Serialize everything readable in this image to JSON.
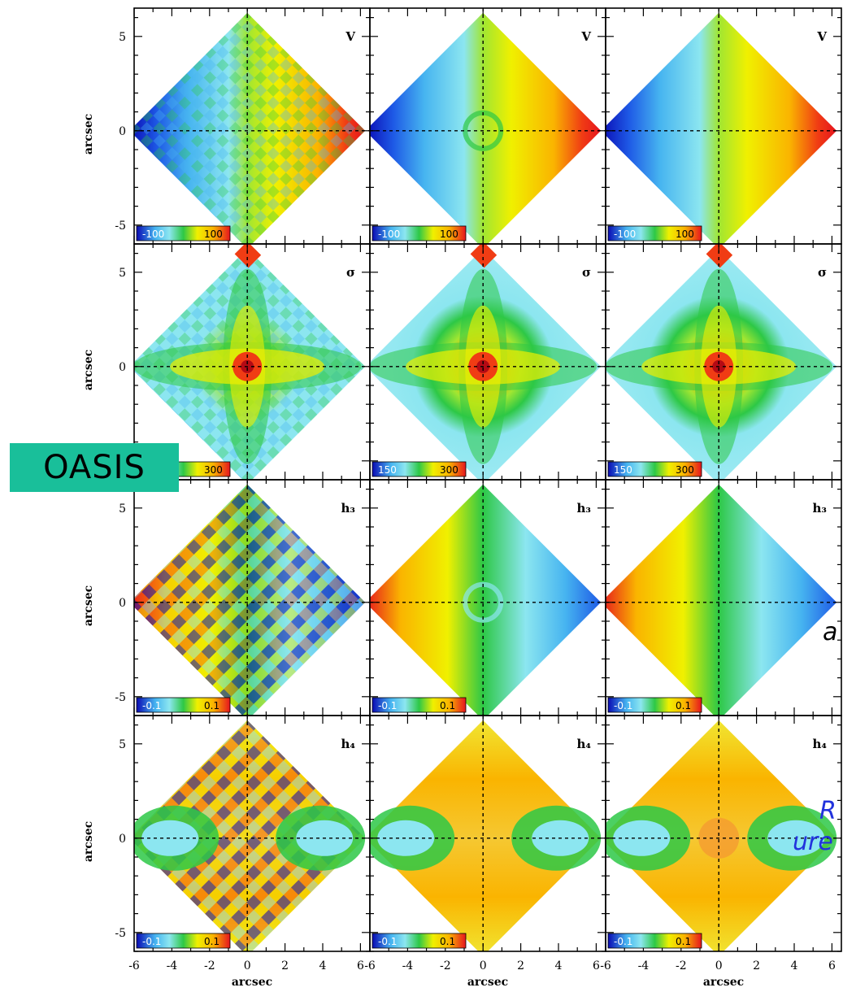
{
  "badge": {
    "label": "OASIS"
  },
  "fragments": {
    "a": "a",
    "r": "R",
    "ure": "ure"
  },
  "axes": {
    "xlabel": "arcsec",
    "ylabel": "arcsec",
    "xticks": [
      -6,
      -4,
      -2,
      0,
      2,
      4,
      6
    ],
    "yticks": [
      -5,
      0,
      5
    ]
  },
  "rows": [
    {
      "moment": "V",
      "colorbar": {
        "low": "-100",
        "high": "100"
      }
    },
    {
      "moment": "σ",
      "colorbar": {
        "low": "150",
        "high": "300"
      }
    },
    {
      "moment": "h₃",
      "colorbar": {
        "low": "-0.1",
        "high": "0.1"
      }
    },
    {
      "moment": "h₄",
      "colorbar": {
        "low": "-0.1",
        "high": "0.1"
      }
    }
  ],
  "colors": {
    "scale": [
      "#0a0ab4",
      "#1e5ae6",
      "#46b4f0",
      "#8ce6f0",
      "#2dc846",
      "#a0e632",
      "#f0f000",
      "#fab400",
      "#f03c14",
      "#e6141e"
    ],
    "background": "#ffffff"
  }
}
